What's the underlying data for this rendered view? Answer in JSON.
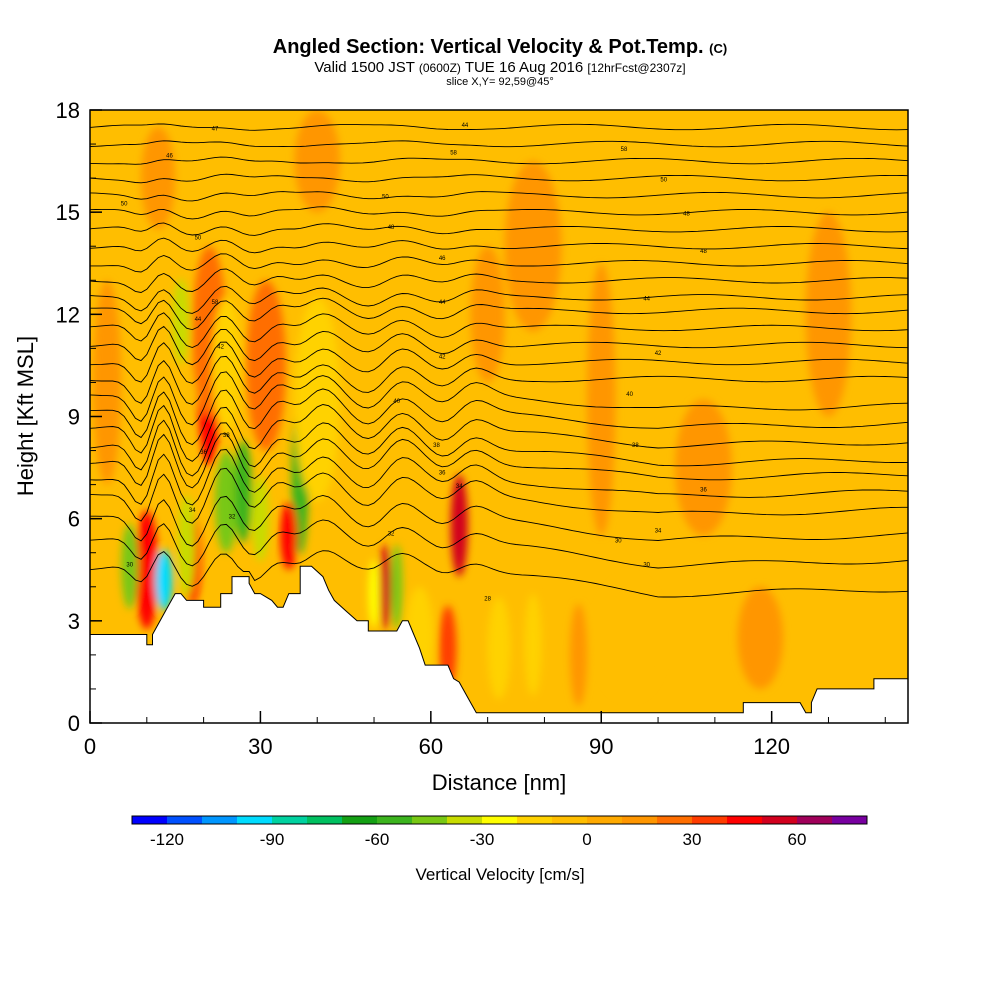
{
  "title": {
    "main": "Angled Section: Vertical Velocity & Pot.Temp.",
    "main_unit": "(C)",
    "valid_prefix": "Valid 1500 JST",
    "valid_zone": "(0600Z)",
    "valid_date": "TUE 16 Aug 2016",
    "valid_fcst": "[12hrFcst@2307z]",
    "slice": "slice X,Y= 92,59@45°"
  },
  "chart_data": {
    "type": "heatmap",
    "xlabel": "Distance [nm]",
    "ylabel": "Height [Kft MSL]",
    "xlim": [
      0,
      144
    ],
    "ylim": [
      0,
      18
    ],
    "x_ticks": [
      0,
      30,
      60,
      90,
      120
    ],
    "y_ticks": [
      0,
      3,
      6,
      9,
      12,
      15,
      18
    ],
    "x_minor_step": 10,
    "y_minor_step": 1,
    "colorbar": {
      "label": "Vertical Velocity [cm/s]",
      "range": [
        -130,
        80
      ],
      "ticks": [
        -120,
        -90,
        -60,
        -30,
        0,
        30,
        60
      ],
      "colors": [
        "#0000ff",
        "#0050ff",
        "#0096ff",
        "#00dcff",
        "#00d2a0",
        "#00c060",
        "#14a014",
        "#3cb41e",
        "#78c814",
        "#c8dc00",
        "#ffff00",
        "#ffd200",
        "#ffbe00",
        "#ffaa00",
        "#ff9600",
        "#ff6e00",
        "#ff3c00",
        "#ff0000",
        "#d2001e",
        "#a0005a",
        "#7800a0"
      ]
    },
    "terrain_kft": [
      [
        0,
        2.6
      ],
      [
        10,
        2.6
      ],
      [
        10,
        2.3
      ],
      [
        11,
        2.3
      ],
      [
        11,
        2.6
      ],
      [
        14,
        3.5
      ],
      [
        15,
        3.8
      ],
      [
        16,
        3.8
      ],
      [
        17,
        3.6
      ],
      [
        20,
        3.6
      ],
      [
        20,
        3.4
      ],
      [
        23,
        3.4
      ],
      [
        23,
        3.8
      ],
      [
        25,
        3.8
      ],
      [
        25,
        4.3
      ],
      [
        28,
        4.3
      ],
      [
        28,
        4.1
      ],
      [
        29,
        3.8
      ],
      [
        30,
        3.8
      ],
      [
        32,
        3.6
      ],
      [
        33,
        3.4
      ],
      [
        34,
        3.4
      ],
      [
        35,
        3.8
      ],
      [
        37,
        3.8
      ],
      [
        37,
        4.6
      ],
      [
        39,
        4.6
      ],
      [
        41,
        4.3
      ],
      [
        42,
        3.9
      ],
      [
        43,
        3.6
      ],
      [
        45,
        3.3
      ],
      [
        47,
        3.0
      ],
      [
        49,
        3.0
      ],
      [
        49,
        2.7
      ],
      [
        54,
        2.7
      ],
      [
        55,
        3.0
      ],
      [
        56,
        3.0
      ],
      [
        57,
        2.6
      ],
      [
        58,
        2.2
      ],
      [
        59,
        1.7
      ],
      [
        63,
        1.7
      ],
      [
        64,
        1.3
      ],
      [
        65,
        1.2
      ],
      [
        67,
        0.6
      ],
      [
        68,
        0.3
      ],
      [
        115,
        0.3
      ],
      [
        115,
        0.6
      ],
      [
        125,
        0.6
      ],
      [
        126,
        0.3
      ],
      [
        127,
        0.3
      ],
      [
        127,
        0.6
      ],
      [
        128,
        1.0
      ],
      [
        138,
        1.0
      ],
      [
        138,
        1.3
      ],
      [
        144,
        1.3
      ]
    ],
    "velocity_cells": [
      {
        "x": 10,
        "y": 4.5,
        "w": 4,
        "h": 3.5,
        "value": 45
      },
      {
        "x": 7,
        "y": 4.6,
        "w": 3,
        "h": 2.5,
        "value": -45
      },
      {
        "x": 13,
        "y": 4.2,
        "w": 3,
        "h": 1.8,
        "value": -100
      },
      {
        "x": 18,
        "y": 4.8,
        "w": 3,
        "h": 2.6,
        "value": 45
      },
      {
        "x": 17,
        "y": 5.2,
        "w": 3,
        "h": 3.0,
        "value": -35
      },
      {
        "x": 21,
        "y": 9.8,
        "w": 4,
        "h": 4.5,
        "value": 45
      },
      {
        "x": 21,
        "y": 11.5,
        "w": 6,
        "h": 5.0,
        "value": 25
      },
      {
        "x": 31,
        "y": 10.7,
        "w": 4,
        "h": 3.5,
        "value": 45
      },
      {
        "x": 31,
        "y": 10.5,
        "w": 7,
        "h": 5.0,
        "value": 25
      },
      {
        "x": 24,
        "y": 6.5,
        "w": 4,
        "h": 3.0,
        "value": -50
      },
      {
        "x": 27,
        "y": 6.8,
        "w": 3,
        "h": 3.0,
        "value": -60
      },
      {
        "x": 30,
        "y": 6.0,
        "w": 3,
        "h": 2.5,
        "value": -40
      },
      {
        "x": 37,
        "y": 7.2,
        "w": 3,
        "h": 4.5,
        "value": -55
      },
      {
        "x": 35,
        "y": 5.5,
        "w": 3,
        "h": 2.0,
        "value": 40
      },
      {
        "x": 16,
        "y": 11.8,
        "w": 3,
        "h": 2.5,
        "value": -40
      },
      {
        "x": 24,
        "y": 10.5,
        "w": 5,
        "h": 4.0,
        "value": -15
      },
      {
        "x": 40,
        "y": 9.5,
        "w": 8,
        "h": 6.0,
        "value": -15
      },
      {
        "x": 52,
        "y": 4.0,
        "w": 2,
        "h": 2.5,
        "value": 50
      },
      {
        "x": 54,
        "y": 4.0,
        "w": 2,
        "h": 2.5,
        "value": -45
      },
      {
        "x": 50,
        "y": 3.8,
        "w": 2,
        "h": 2.0,
        "value": -30
      },
      {
        "x": 65,
        "y": 5.8,
        "w": 3,
        "h": 3.0,
        "value": 50
      },
      {
        "x": 63,
        "y": 2.2,
        "w": 3,
        "h": 2.5,
        "value": 30
      },
      {
        "x": 58,
        "y": 2.5,
        "w": 5,
        "h": 3.0,
        "value": -15
      },
      {
        "x": 72,
        "y": 2.2,
        "w": 4,
        "h": 3.0,
        "value": -20
      },
      {
        "x": 78,
        "y": 2.3,
        "w": 3,
        "h": 3.0,
        "value": -15
      },
      {
        "x": 95,
        "y": 2.5,
        "w": 12,
        "h": 3.5,
        "value": -10
      },
      {
        "x": 86,
        "y": 2.0,
        "w": 3,
        "h": 3.0,
        "value": 15
      },
      {
        "x": 118,
        "y": 2.5,
        "w": 8,
        "h": 3.0,
        "value": 15
      },
      {
        "x": 90,
        "y": 9.5,
        "w": 5,
        "h": 8.0,
        "value": 10
      },
      {
        "x": 78,
        "y": 14.0,
        "w": 10,
        "h": 5.0,
        "value": 10
      },
      {
        "x": 130,
        "y": 12.0,
        "w": 8,
        "h": 6.0,
        "value": 10
      },
      {
        "x": 12,
        "y": 16.0,
        "w": 6,
        "h": 3.0,
        "value": 15
      },
      {
        "x": 40,
        "y": 16.5,
        "w": 8,
        "h": 3.0,
        "value": 10
      },
      {
        "x": 70,
        "y": 12.0,
        "w": 6,
        "h": 4.0,
        "value": 10
      },
      {
        "x": 108,
        "y": 7.5,
        "w": 10,
        "h": 4.0,
        "value": 10
      },
      {
        "x": 3,
        "y": 10.0,
        "w": 5,
        "h": 6.0,
        "value": 15
      }
    ],
    "theta_isolines_kft_at_x0": [
      4.5,
      5.3,
      6.0,
      6.7,
      7.2,
      7.7,
      8.1,
      8.6,
      9.1,
      9.6,
      10.1,
      10.6,
      11.1,
      11.6,
      12.1,
      12.5,
      13.0,
      13.5,
      14.0,
      14.5,
      15.0,
      15.5,
      16.0,
      16.5,
      17.0,
      17.5
    ],
    "contour_labels": [
      {
        "x": 22,
        "y": 17.4,
        "text": "47"
      },
      {
        "x": 66,
        "y": 17.5,
        "text": "44"
      },
      {
        "x": 14,
        "y": 16.6,
        "text": "46"
      },
      {
        "x": 64,
        "y": 16.7,
        "text": "58"
      },
      {
        "x": 94,
        "y": 16.8,
        "text": "58"
      },
      {
        "x": 6,
        "y": 15.2,
        "text": "50"
      },
      {
        "x": 52,
        "y": 15.4,
        "text": "50"
      },
      {
        "x": 101,
        "y": 15.9,
        "text": "50"
      },
      {
        "x": 105,
        "y": 14.9,
        "text": "48"
      },
      {
        "x": 53,
        "y": 14.5,
        "text": "48"
      },
      {
        "x": 19,
        "y": 14.2,
        "text": "50"
      },
      {
        "x": 62,
        "y": 13.6,
        "text": "46"
      },
      {
        "x": 108,
        "y": 13.8,
        "text": "48"
      },
      {
        "x": 22,
        "y": 12.3,
        "text": "58"
      },
      {
        "x": 62,
        "y": 12.3,
        "text": "44"
      },
      {
        "x": 98,
        "y": 12.4,
        "text": "44"
      },
      {
        "x": 19,
        "y": 11.8,
        "text": "44"
      },
      {
        "x": 23,
        "y": 11.0,
        "text": "42"
      },
      {
        "x": 100,
        "y": 10.8,
        "text": "42"
      },
      {
        "x": 62,
        "y": 10.7,
        "text": "42"
      },
      {
        "x": 95,
        "y": 9.6,
        "text": "40"
      },
      {
        "x": 54,
        "y": 9.4,
        "text": "40"
      },
      {
        "x": 24,
        "y": 8.4,
        "text": "38"
      },
      {
        "x": 96,
        "y": 8.1,
        "text": "38"
      },
      {
        "x": 61,
        "y": 8.1,
        "text": "38"
      },
      {
        "x": 20,
        "y": 7.9,
        "text": "36"
      },
      {
        "x": 62,
        "y": 7.3,
        "text": "36"
      },
      {
        "x": 108,
        "y": 6.8,
        "text": "36"
      },
      {
        "x": 65,
        "y": 6.9,
        "text": "34"
      },
      {
        "x": 18,
        "y": 6.2,
        "text": "34"
      },
      {
        "x": 25,
        "y": 6.0,
        "text": "32"
      },
      {
        "x": 100,
        "y": 5.6,
        "text": "34"
      },
      {
        "x": 53,
        "y": 5.5,
        "text": "32"
      },
      {
        "x": 93,
        "y": 5.3,
        "text": "30"
      },
      {
        "x": 7,
        "y": 4.6,
        "text": "30"
      },
      {
        "x": 98,
        "y": 4.6,
        "text": "30"
      },
      {
        "x": 70,
        "y": 3.6,
        "text": "28"
      }
    ]
  }
}
